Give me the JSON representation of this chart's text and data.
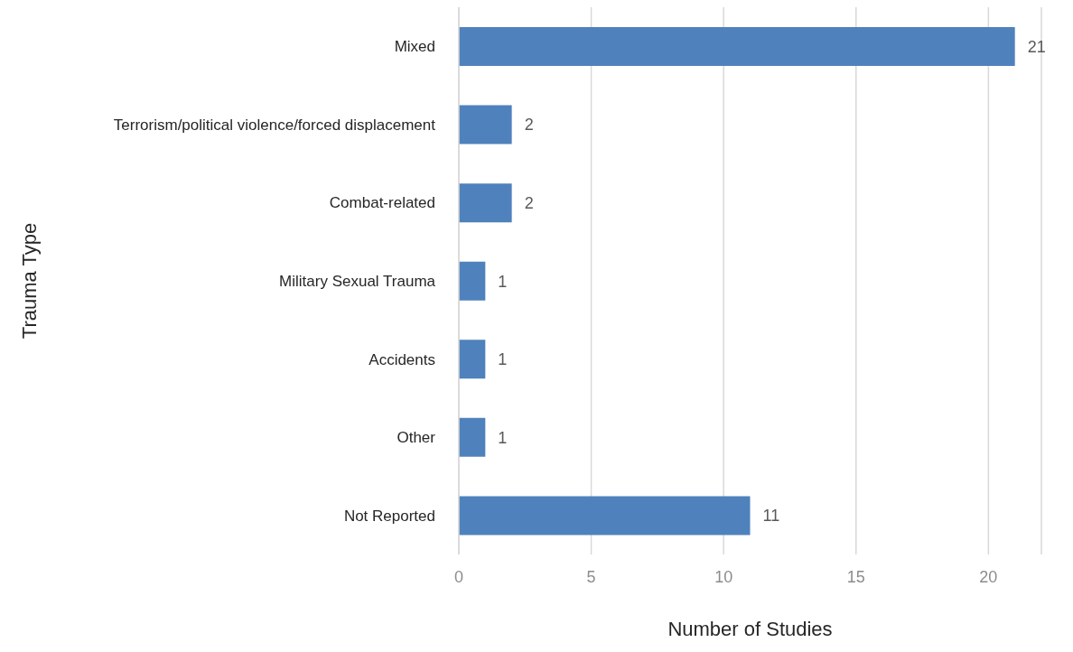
{
  "chart_data": {
    "type": "bar",
    "orientation": "horizontal",
    "xlabel": "Number of Studies",
    "ylabel": "Trauma Type",
    "categories": [
      "Mixed",
      "Terrorism/political violence/forced displacement",
      "Combat-related",
      "Military Sexual Trauma",
      "Accidents",
      "Other",
      "Not Reported"
    ],
    "values": [
      21,
      2,
      2,
      1,
      1,
      1,
      11
    ],
    "color": "#4f81bd",
    "xlim": [
      0,
      22
    ],
    "xticks": [
      0,
      5,
      10,
      15,
      20
    ],
    "grid": "x",
    "data_labels": true
  }
}
